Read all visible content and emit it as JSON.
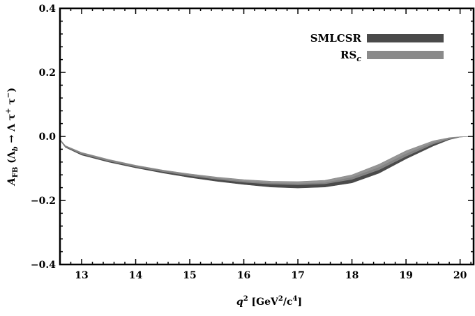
{
  "chart_data": {
    "type": "area",
    "xlim": [
      12.6,
      20.25
    ],
    "ylim": [
      -0.4,
      0.4
    ],
    "xticks": [
      13,
      14,
      15,
      16,
      17,
      18,
      19,
      20
    ],
    "xtick_labels": [
      "13",
      "14",
      "15",
      "16",
      "17",
      "18",
      "19",
      "20"
    ],
    "yticks": [
      -0.4,
      -0.2,
      0.0,
      0.2,
      0.4
    ],
    "ytick_labels": [
      "−0.4",
      "−0.2",
      "0.0",
      "0.2",
      "0.4"
    ],
    "xlabel": {
      "var": "q",
      "sup": "2",
      "open": " [GeV",
      "sup2": "2",
      "mid": "/c",
      "sup3": "4",
      "close": "]"
    },
    "ylabel": {
      "var": "A",
      "sub": "FB",
      "body": " (Λ",
      "sub2": "b",
      "arrow": " → Λ τ",
      "sup": "+",
      "tau2": " τ",
      "sup2": "−",
      "close": ")"
    },
    "legend_position": "top-right",
    "grid": false,
    "series": [
      {
        "name": "SMLCSR",
        "color": "#4a4a4a",
        "x": [
          12.6,
          12.7,
          13.0,
          13.5,
          14.0,
          14.5,
          15.0,
          15.5,
          16.0,
          16.5,
          17.0,
          17.5,
          18.0,
          18.5,
          19.0,
          19.5,
          19.8,
          20.0,
          20.25
        ],
        "upper": [
          -0.01,
          -0.03,
          -0.052,
          -0.074,
          -0.092,
          -0.107,
          -0.12,
          -0.131,
          -0.14,
          -0.146,
          -0.148,
          -0.145,
          -0.128,
          -0.097,
          -0.055,
          -0.02,
          -0.006,
          -0.001,
          0.0
        ],
        "lower": [
          -0.012,
          -0.034,
          -0.058,
          -0.08,
          -0.098,
          -0.114,
          -0.128,
          -0.14,
          -0.15,
          -0.158,
          -0.161,
          -0.158,
          -0.145,
          -0.115,
          -0.07,
          -0.03,
          -0.01,
          -0.002,
          0.0
        ]
      },
      {
        "name": "RS",
        "name_sub": "c",
        "color": "#8a8a8a",
        "x": [
          12.6,
          12.7,
          13.0,
          13.5,
          14.0,
          14.5,
          15.0,
          15.5,
          16.0,
          16.5,
          17.0,
          17.5,
          18.0,
          18.5,
          19.0,
          19.5,
          19.8,
          20.0,
          20.25
        ],
        "upper": [
          -0.009,
          -0.029,
          -0.05,
          -0.072,
          -0.09,
          -0.105,
          -0.117,
          -0.127,
          -0.135,
          -0.14,
          -0.141,
          -0.137,
          -0.12,
          -0.087,
          -0.045,
          -0.014,
          -0.004,
          -0.001,
          0.0
        ],
        "lower": [
          -0.011,
          -0.032,
          -0.055,
          -0.077,
          -0.095,
          -0.11,
          -0.123,
          -0.134,
          -0.143,
          -0.149,
          -0.151,
          -0.148,
          -0.134,
          -0.104,
          -0.062,
          -0.024,
          -0.008,
          -0.002,
          0.0
        ]
      }
    ]
  }
}
